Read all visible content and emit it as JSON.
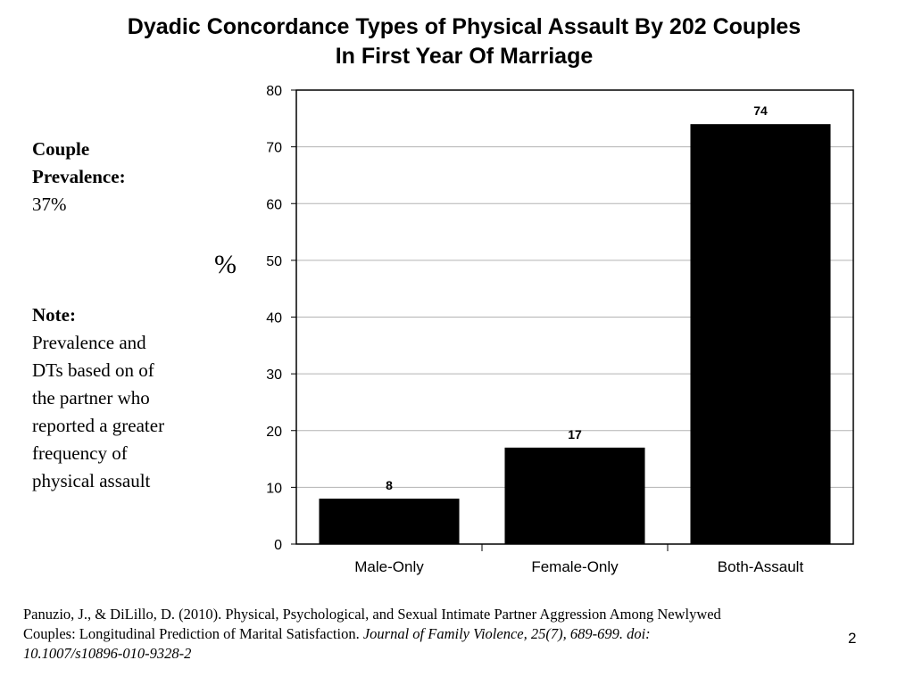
{
  "chart_data": {
    "type": "bar",
    "title_line1": "Dyadic Concordance Types of Physical Assault By 202 Couples",
    "title_line2": "In First Year Of Marriage",
    "categories": [
      "Male-Only",
      "Female-Only",
      "Both-Assault"
    ],
    "values": [
      8,
      17,
      74
    ],
    "data_labels": [
      "8",
      "17",
      "74"
    ],
    "ylabel": "%",
    "xlabel": "",
    "ylim": [
      0,
      80
    ],
    "y_ticks": [
      0,
      10,
      20,
      30,
      40,
      50,
      60,
      70,
      80
    ],
    "grid": true,
    "bar_color": "#000000",
    "grid_color": "#b3b3b3"
  },
  "sidebar": {
    "prevalence_heading_1": "Couple",
    "prevalence_heading_2": "Prevalence:",
    "prevalence_value": "37%",
    "note_heading": "Note:",
    "note_lines": [
      "Prevalence and",
      "DTs based on of",
      "the partner who",
      "reported a greater",
      "frequency of",
      "physical assault"
    ]
  },
  "citation": {
    "line1": "Panuzio, J., & DiLillo, D. (2010). Physical, Psychological, and Sexual Intimate Partner Aggression Among Newlywed",
    "line2_plain": "Couples: Longitudinal Prediction of Marital Satisfaction. ",
    "line2_italic": "Journal of Family Violence, 25(7), 689-699. doi:",
    "line3_italic": "10.1007/s10896-010-9328-2"
  },
  "page_number": "2"
}
